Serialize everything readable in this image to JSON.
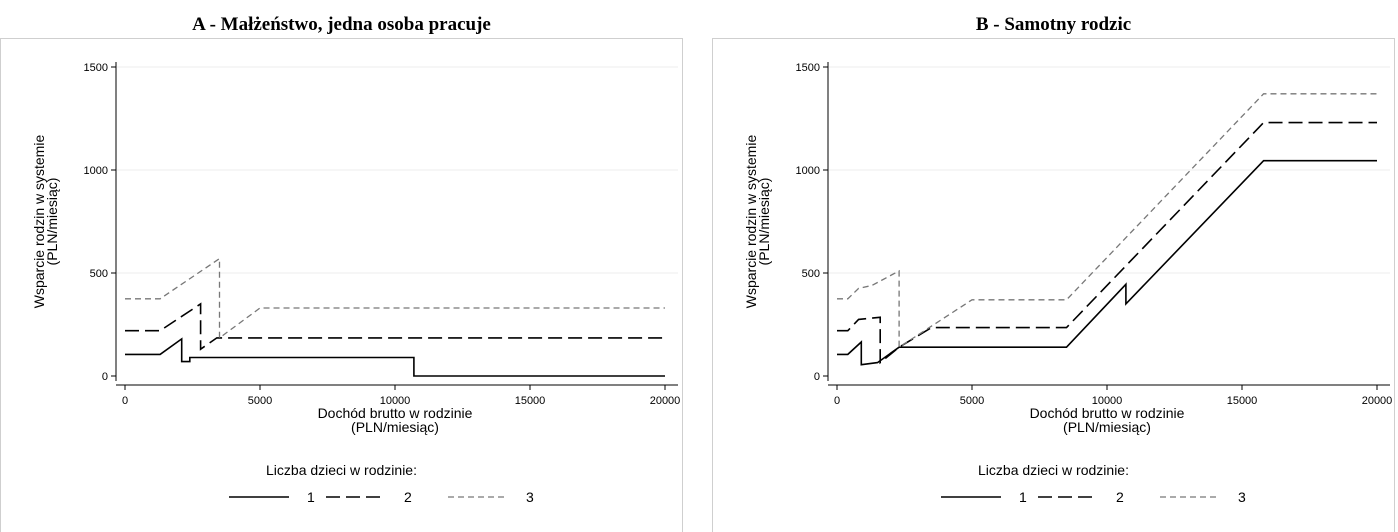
{
  "chart_data": [
    {
      "type": "line",
      "title": "A - Małżeństwo, jedna osoba pracuje",
      "xlabel": [
        "Dochód brutto w rodzinie",
        "(PLN/miesiąc)"
      ],
      "ylabel": [
        "Wsparcie rodzin w systemie",
        "(PLN/miesiąc)"
      ],
      "xlim": [
        0,
        20000
      ],
      "ylim": [
        0,
        1500
      ],
      "x_ticks": [
        0,
        5000,
        10000,
        15000,
        20000
      ],
      "y_ticks": [
        0,
        500,
        1000,
        1500
      ],
      "grid": "horizontal",
      "legend_title": "Liczba dzieci w rodzinie:",
      "legend_position": "bottom",
      "series": [
        {
          "name": "1",
          "style": "solid",
          "color": "#000000",
          "x": [
            0,
            1300,
            2100,
            2100,
            2400,
            2400,
            10700,
            10700,
            20000
          ],
          "y": [
            105,
            105,
            180,
            70,
            70,
            90,
            90,
            0,
            0
          ]
        },
        {
          "name": "2",
          "style": "longdash",
          "color": "#000000",
          "x": [
            0,
            1300,
            2800,
            2800,
            3400,
            20000
          ],
          "y": [
            220,
            220,
            350,
            130,
            185,
            185
          ]
        },
        {
          "name": "3",
          "style": "shortdash",
          "color": "#777777",
          "x": [
            0,
            1300,
            3500,
            3500,
            5000,
            20000
          ],
          "y": [
            375,
            375,
            570,
            185,
            330,
            330
          ]
        }
      ]
    },
    {
      "type": "line",
      "title": "B - Samotny rodzic",
      "xlabel": [
        "Dochód brutto w rodzinie",
        "(PLN/miesiąc)"
      ],
      "ylabel": [
        "Wsparcie rodzin w systemie",
        "(PLN/miesiąc)"
      ],
      "xlim": [
        0,
        20000
      ],
      "ylim": [
        0,
        1500
      ],
      "x_ticks": [
        0,
        5000,
        10000,
        15000,
        20000
      ],
      "y_ticks": [
        0,
        500,
        1000,
        1500
      ],
      "grid": "horizontal",
      "legend_title": "Liczba dzieci w rodzinie:",
      "legend_position": "bottom",
      "series": [
        {
          "name": "1",
          "style": "solid",
          "color": "#000000",
          "x": [
            0,
            400,
            900,
            900,
            1500,
            2300,
            8500,
            10700,
            10700,
            15800,
            20000
          ],
          "y": [
            105,
            105,
            165,
            55,
            65,
            140,
            140,
            445,
            350,
            1045,
            1045
          ]
        },
        {
          "name": "2",
          "style": "longdash",
          "color": "#000000",
          "x": [
            0,
            400,
            800,
            1600,
            1600,
            2300,
            3500,
            8500,
            15800,
            20000
          ],
          "y": [
            220,
            220,
            275,
            285,
            65,
            140,
            235,
            235,
            1230,
            1230
          ]
        },
        {
          "name": "3",
          "style": "shortdash",
          "color": "#777777",
          "x": [
            0,
            400,
            800,
            1300,
            2300,
            2300,
            5000,
            8500,
            15800,
            20000
          ],
          "y": [
            375,
            375,
            425,
            440,
            510,
            140,
            370,
            370,
            1370,
            1370
          ]
        }
      ]
    }
  ]
}
